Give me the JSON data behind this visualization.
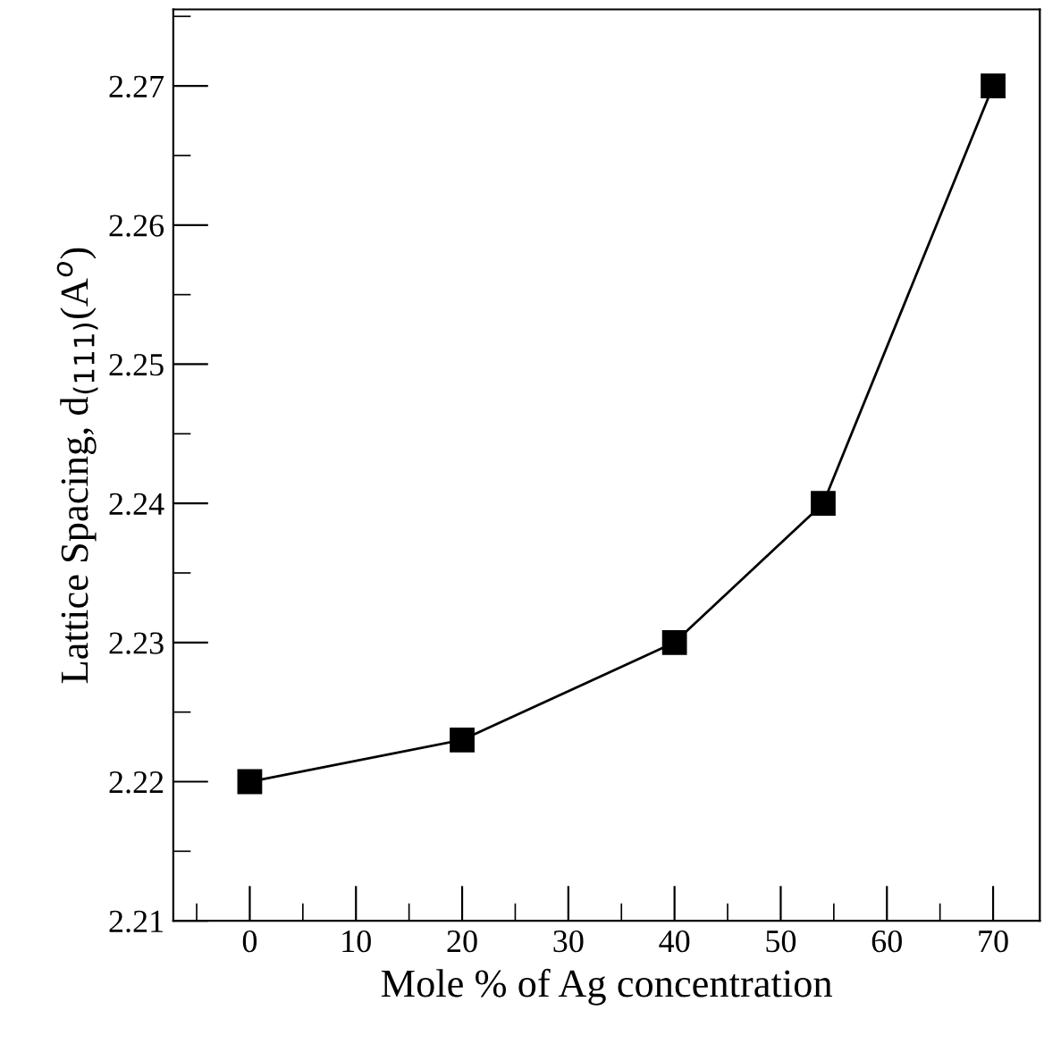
{
  "chart_data": {
    "type": "line",
    "xlabel": "Mole % of Ag concentration",
    "ylabel": "Lattice Spacing, d$_{(111)}$(A$^{o}$)",
    "x": [
      0,
      20,
      40,
      54,
      70
    ],
    "series": [
      {
        "color": "#000000",
        "values": [
          2.22,
          2.223,
          2.23,
          2.24,
          2.27
        ]
      }
    ],
    "xlim": [
      -7.2,
      74.4
    ],
    "ylim": [
      2.21,
      2.2755
    ],
    "xticks": [
      0,
      10,
      20,
      30,
      40,
      50,
      60,
      70
    ],
    "yticks": [
      2.21,
      2.22,
      2.23,
      2.24,
      2.25,
      2.26,
      2.27
    ],
    "marker": "square",
    "line_style": "solid",
    "grid": false,
    "legend": false
  }
}
